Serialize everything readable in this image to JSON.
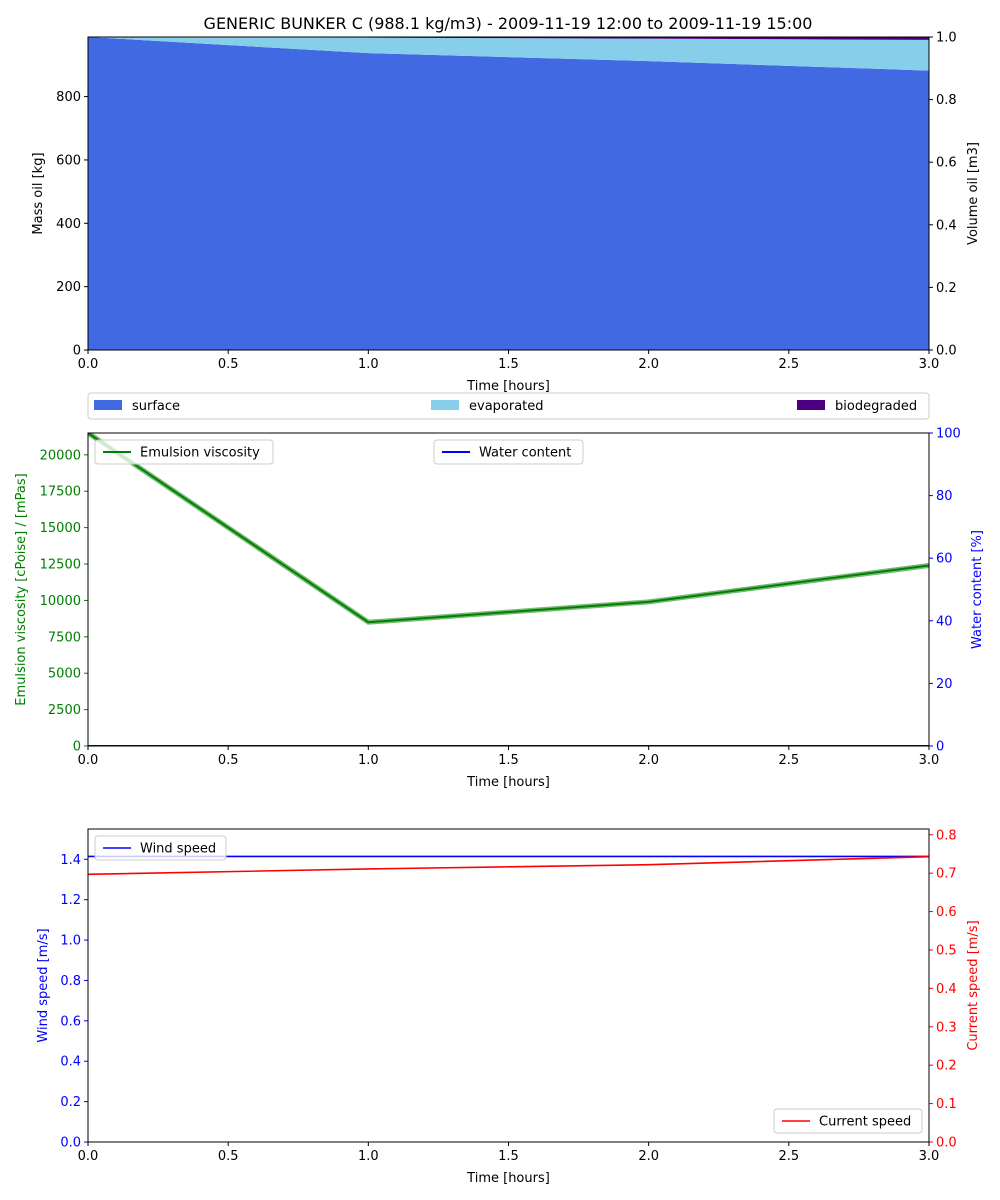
{
  "figure": {
    "title": "GENERIC BUNKER C (988.1 kg/m3) - 2009-11-19 12:00 to 2009-11-19 15:00"
  },
  "colors": {
    "surface": "#4169e1",
    "evaporated": "#87ceeb",
    "biodegraded": "#4b0082",
    "viscosity": "#008000",
    "water": "#0000ff",
    "wind": "#0000ff",
    "current": "#ff0000"
  },
  "chart_data": [
    {
      "type": "area",
      "xlabel": "Time  [hours]",
      "ylabel": "Mass oil  [kg]",
      "y2label": "Volume oil [m3]",
      "x": [
        0.0,
        1.0,
        2.0,
        3.0
      ],
      "xlim": [
        0,
        3
      ],
      "ylim": [
        0,
        988.1
      ],
      "y2lim": [
        0,
        1.0
      ],
      "xticks": [
        0,
        0.5,
        1,
        1.5,
        2,
        2.5,
        3
      ],
      "xtick_labels": [
        "0.0",
        "0.5",
        "1.0",
        "1.5",
        "2.0",
        "2.5",
        "3.0"
      ],
      "yticks": [
        0,
        200,
        400,
        600,
        800
      ],
      "ytick_labels": [
        "0",
        "200",
        "400",
        "600",
        "800"
      ],
      "y2ticks": [
        0,
        0.2,
        0.4,
        0.6,
        0.8,
        1.0
      ],
      "y2tick_labels": [
        "0.0",
        "0.2",
        "0.4",
        "0.6",
        "0.8",
        "1.0"
      ],
      "stacked": true,
      "series": [
        {
          "name": "surface",
          "color": "#4169e1",
          "values": [
            988.1,
            937,
            912,
            882
          ]
        },
        {
          "name": "evaporated",
          "color": "#87ceeb",
          "values": [
            0,
            49,
            71,
            97
          ]
        },
        {
          "name": "biodegraded",
          "color": "#4b0082",
          "values": [
            0,
            2,
            5,
            9
          ]
        }
      ],
      "legend": {
        "placement": "below plot, spanning width",
        "entries": [
          "surface",
          "evaporated",
          "biodegraded"
        ]
      }
    },
    {
      "type": "line",
      "xlabel": "Time [hours]",
      "ylabel": "Emulsion viscosity  [cPoise] / [mPas]",
      "y2label": "Water content  [%]",
      "x": [
        0.0,
        1.0,
        2.0,
        3.0
      ],
      "xlim": [
        0,
        3
      ],
      "ylim": [
        0,
        21500
      ],
      "y2lim": [
        0,
        100
      ],
      "xticks": [
        0,
        0.5,
        1,
        1.5,
        2,
        2.5,
        3
      ],
      "xtick_labels": [
        "0.0",
        "0.5",
        "1.0",
        "1.5",
        "2.0",
        "2.5",
        "3.0"
      ],
      "yticks": [
        0,
        2500,
        5000,
        7500,
        10000,
        12500,
        15000,
        17500,
        20000
      ],
      "ytick_labels": [
        "0",
        "2500",
        "5000",
        "7500",
        "10000",
        "12500",
        "15000",
        "17500",
        "20000"
      ],
      "y2ticks": [
        0,
        20,
        40,
        60,
        80,
        100
      ],
      "y2tick_labels": [
        "0",
        "20",
        "40",
        "60",
        "80",
        "100"
      ],
      "series": [
        {
          "name": "Emulsion viscosity",
          "axis": "left",
          "color": "#008000",
          "values": [
            21500,
            8500,
            9900,
            12400
          ]
        },
        {
          "name": "Water content",
          "axis": "right",
          "color": "#0000ff",
          "values": [
            0,
            0,
            0,
            0
          ]
        }
      ],
      "legend": {
        "viscosity_placement": "upper-left",
        "water_placement": "upper-center"
      }
    },
    {
      "type": "line",
      "xlabel": "Time  [hours]",
      "ylabel": "Wind speed  [m/s]",
      "y2label": "Current speed  [m/s]",
      "x": [
        0.0,
        1.0,
        2.0,
        3.0
      ],
      "xlim": [
        0,
        3
      ],
      "ylim": [
        0,
        1.55
      ],
      "y2lim": [
        0,
        0.815
      ],
      "xticks": [
        0,
        0.5,
        1,
        1.5,
        2,
        2.5,
        3
      ],
      "xtick_labels": [
        "0.0",
        "0.5",
        "1.0",
        "1.5",
        "2.0",
        "2.5",
        "3.0"
      ],
      "yticks": [
        0,
        0.2,
        0.4,
        0.6,
        0.8,
        1.0,
        1.2,
        1.4
      ],
      "ytick_labels": [
        "0.0",
        "0.2",
        "0.4",
        "0.6",
        "0.8",
        "1.0",
        "1.2",
        "1.4"
      ],
      "y2ticks": [
        0,
        0.1,
        0.2,
        0.3,
        0.4,
        0.5,
        0.6,
        0.7,
        0.8
      ],
      "y2tick_labels": [
        "0.0",
        "0.1",
        "0.2",
        "0.3",
        "0.4",
        "0.5",
        "0.6",
        "0.7",
        "0.8"
      ],
      "series": [
        {
          "name": "Wind speed",
          "axis": "left",
          "color": "#0000ff",
          "values": [
            1.414,
            1.414,
            1.414,
            1.414
          ]
        },
        {
          "name": "Current speed",
          "axis": "right",
          "color": "#ff0000",
          "values": [
            0.697,
            0.711,
            0.722,
            0.743
          ]
        }
      ],
      "legend": {
        "wind_placement": "upper-left",
        "current_placement": "lower-right"
      }
    }
  ]
}
